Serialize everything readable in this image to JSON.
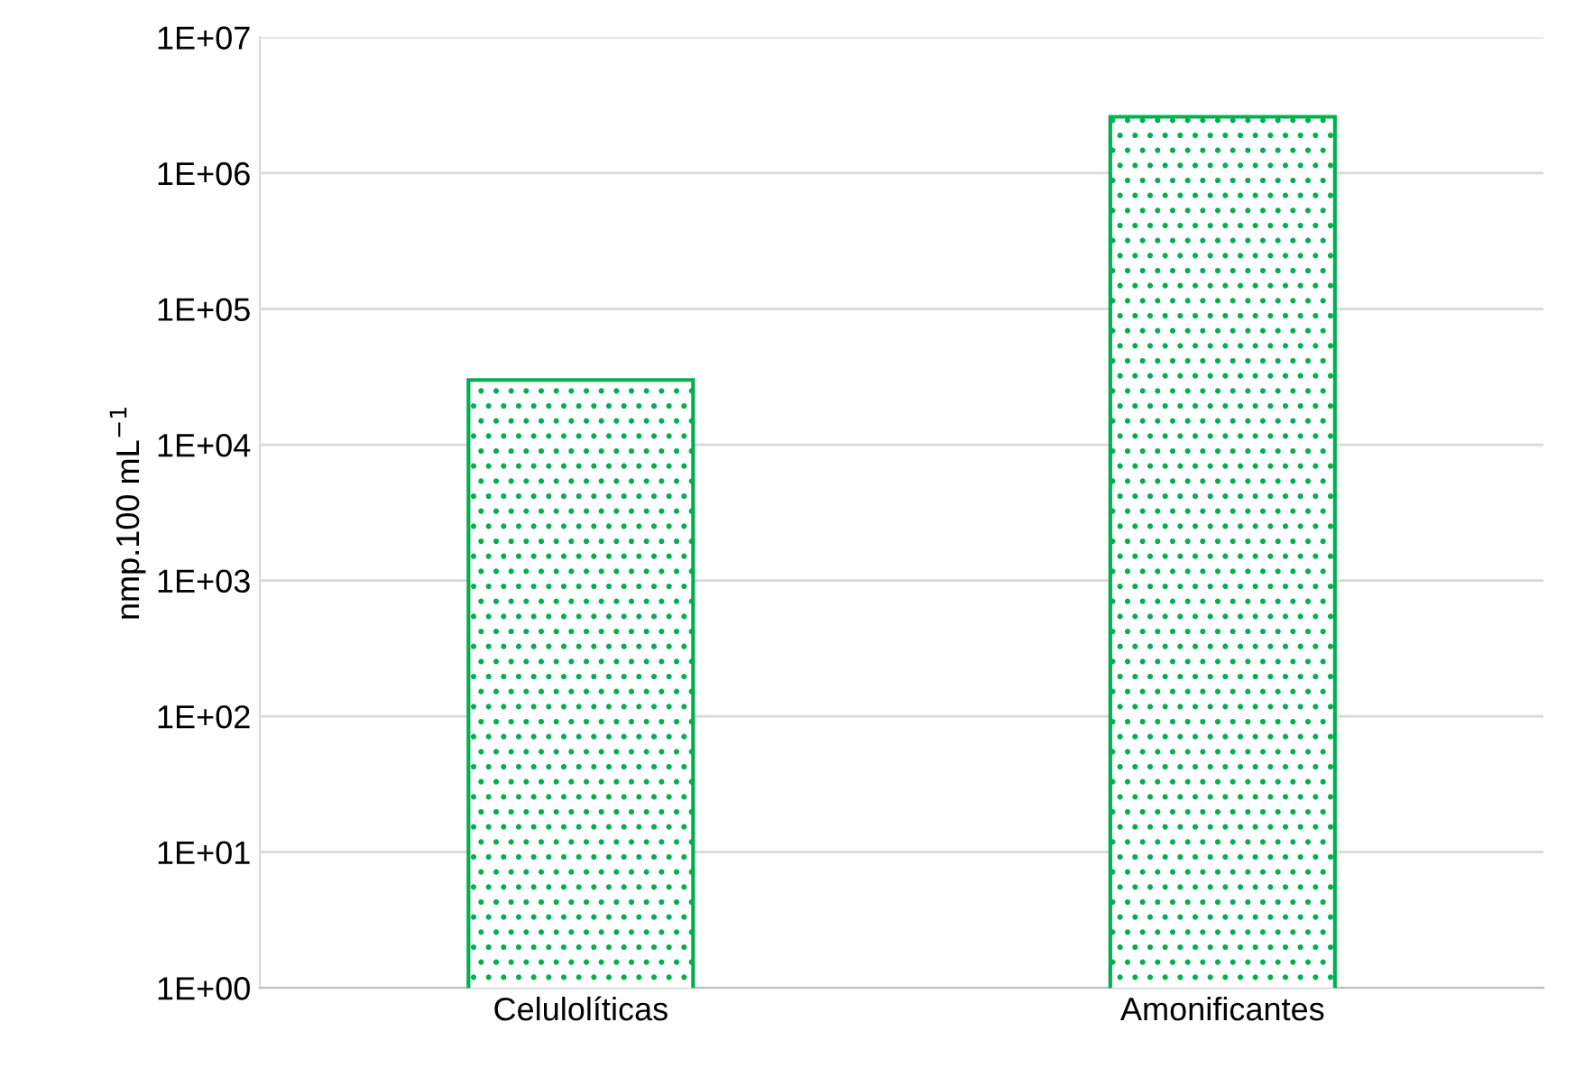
{
  "chart_data": {
    "type": "bar",
    "ylabel": "nmp.100 mL$^{−1}$",
    "categories": [
      "Celulolíticas",
      "Amonificantes"
    ],
    "values": [
      30000,
      2600000
    ],
    "color": "#00b050",
    "log": true,
    "ylim": [
      1,
      10000000
    ],
    "yticks": [
      {
        "value": 1,
        "label": "1E+00"
      },
      {
        "value": 10,
        "label": "1E+01"
      },
      {
        "value": 100,
        "label": "1E+02"
      },
      {
        "value": 1000,
        "label": "1E+03"
      },
      {
        "value": 10000,
        "label": "1E+04"
      },
      {
        "value": 100000,
        "label": "1E+05"
      },
      {
        "value": 1000000,
        "label": "1E+06"
      },
      {
        "value": 10000000,
        "label": "1E+07"
      }
    ],
    "grid": "y",
    "legend": false
  }
}
